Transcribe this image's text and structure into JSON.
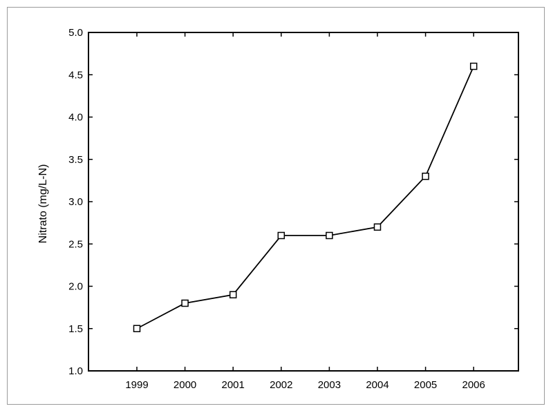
{
  "chart_data": {
    "type": "line",
    "title": "",
    "xlabel": "",
    "ylabel": "Nitrato (mg/L-N)",
    "categories": [
      "1999",
      "2000",
      "2001",
      "2002",
      "2003",
      "2004",
      "2005",
      "2006"
    ],
    "series": [
      {
        "values": [
          1.5,
          1.8,
          1.9,
          2.6,
          2.6,
          2.7,
          3.3,
          4.6
        ],
        "marker": "open-square",
        "color": "#000000"
      }
    ],
    "ylim": [
      1.0,
      5.0
    ],
    "yticks": [
      "1.0",
      "1.5",
      "2.0",
      "2.5",
      "3.0",
      "3.5",
      "4.0",
      "4.5",
      "5.0"
    ],
    "grid": false,
    "legend": "none"
  }
}
